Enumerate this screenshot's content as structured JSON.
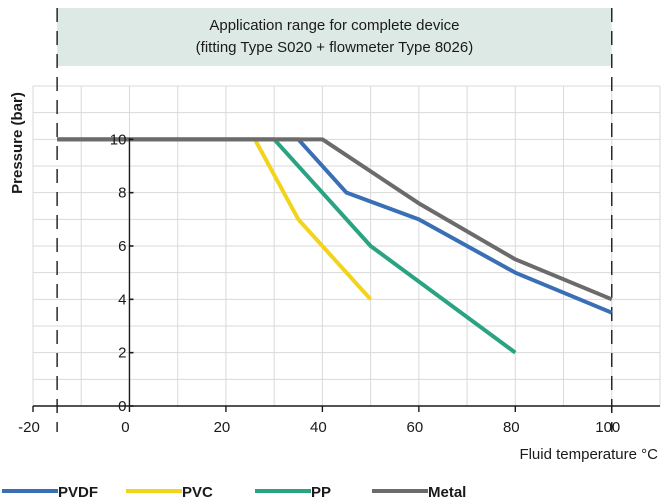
{
  "chart_data": {
    "type": "line",
    "title": "",
    "banner": {
      "line1": "Application range for complete device",
      "line2": "(fitting Type S020 + flowmeter Type 8026)",
      "range": [
        -15,
        100
      ]
    },
    "xlabel": "Fluid temperature °C",
    "ylabel": "Pressure (bar)",
    "xlim": [
      -20,
      110
    ],
    "ylim": [
      0,
      12
    ],
    "x_ticks": [
      -20,
      0,
      20,
      40,
      60,
      80,
      100
    ],
    "y_ticks": [
      0,
      2,
      4,
      6,
      8,
      10
    ],
    "grid": true,
    "legend_position": "bottom",
    "series": [
      {
        "name": "PVDF",
        "color": "#3a6fb5",
        "points": [
          [
            -15,
            10
          ],
          [
            35,
            10
          ],
          [
            45,
            8
          ],
          [
            60,
            7
          ],
          [
            80,
            5
          ],
          [
            100,
            3.5
          ]
        ]
      },
      {
        "name": "PVC",
        "color": "#f2d41c",
        "points": [
          [
            -15,
            10
          ],
          [
            26,
            10
          ],
          [
            35,
            7
          ],
          [
            50,
            4
          ]
        ]
      },
      {
        "name": "PP",
        "color": "#2aa383",
        "points": [
          [
            -15,
            10
          ],
          [
            30,
            10
          ],
          [
            50,
            6
          ],
          [
            80,
            2
          ]
        ]
      },
      {
        "name": "Metal",
        "color": "#6b6b6b",
        "points": [
          [
            -15,
            10
          ],
          [
            40,
            10
          ],
          [
            60,
            7.6
          ],
          [
            80,
            5.5
          ],
          [
            100,
            4
          ]
        ]
      }
    ],
    "colors": {
      "banner_fill": "#dde9e4",
      "grid": "#d9d9d9",
      "axis": "#1a1a1a"
    }
  }
}
